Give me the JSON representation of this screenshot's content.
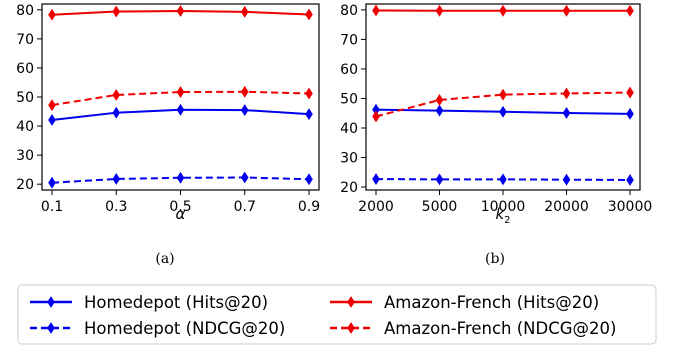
{
  "chart_data": [
    {
      "type": "line",
      "caption": "(a)",
      "xlabel": "α",
      "ylabel": "",
      "categories": [
        "0.1",
        "0.3",
        "0.5",
        "0.7",
        "0.9"
      ],
      "ylim": [
        18,
        82
      ],
      "yticks": [
        20,
        30,
        40,
        50,
        60,
        70,
        80
      ],
      "grid": false,
      "series": [
        {
          "name": "Homedepot (Hits@20)",
          "color": "#0000ee",
          "dashed": false,
          "values": [
            42.1,
            44.6,
            45.6,
            45.5,
            44.1
          ]
        },
        {
          "name": "Homedepot (NDCG@20)",
          "color": "#0000ee",
          "dashed": true,
          "values": [
            20.5,
            21.8,
            22.2,
            22.3,
            21.7
          ]
        },
        {
          "name": "Amazon-French (Hits@20)",
          "color": "#ee0000",
          "dashed": false,
          "values": [
            78.3,
            79.4,
            79.6,
            79.3,
            78.4
          ]
        },
        {
          "name": "Amazon-French (NDCG@20)",
          "color": "#ee0000",
          "dashed": true,
          "values": [
            47.2,
            50.7,
            51.7,
            51.8,
            51.2
          ]
        }
      ]
    },
    {
      "type": "line",
      "caption": "(b)",
      "xlabel": "k",
      "xlabel_sub": "2",
      "ylabel": "",
      "categories": [
        "2000",
        "5000",
        "10000",
        "20000",
        "30000"
      ],
      "ylim": [
        19,
        82
      ],
      "yticks": [
        20,
        30,
        40,
        50,
        60,
        70,
        80
      ],
      "grid": false,
      "series": [
        {
          "name": "Homedepot (Hits@20)",
          "color": "#0000ee",
          "dashed": false,
          "values": [
            46.2,
            45.9,
            45.5,
            45.1,
            44.8
          ]
        },
        {
          "name": "Homedepot (NDCG@20)",
          "color": "#0000ee",
          "dashed": true,
          "values": [
            22.7,
            22.6,
            22.6,
            22.5,
            22.4
          ]
        },
        {
          "name": "Amazon-French (Hits@20)",
          "color": "#ee0000",
          "dashed": false,
          "values": [
            79.8,
            79.7,
            79.7,
            79.7,
            79.7
          ]
        },
        {
          "name": "Amazon-French (NDCG@20)",
          "color": "#ee0000",
          "dashed": true,
          "values": [
            43.9,
            49.5,
            51.3,
            51.7,
            52.0
          ]
        }
      ]
    }
  ],
  "legend": {
    "placement": "bottom",
    "entries": [
      {
        "label": "Homedepot (Hits@20)",
        "color": "#0000ee",
        "dashed": false
      },
      {
        "label": "Amazon-French (Hits@20)",
        "color": "#ee0000",
        "dashed": false
      },
      {
        "label": "Homedepot (NDCG@20)",
        "color": "#0000ee",
        "dashed": true
      },
      {
        "label": "Amazon-French (NDCG@20)",
        "color": "#ee0000",
        "dashed": true
      }
    ]
  }
}
